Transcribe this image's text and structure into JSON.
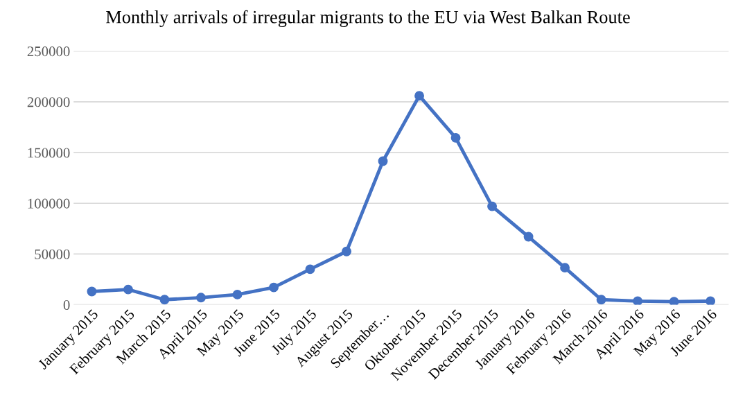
{
  "chart_data": {
    "type": "line",
    "title": "Monthly arrivals of irregular migrants to the EU via West Balkan Route",
    "categories": [
      "January 2015",
      "February 2015",
      "March 2015",
      "April 2015",
      "May 2015",
      "June 2015",
      "July 2015",
      "August 2015",
      "September…",
      "Oktober 2015",
      "November 2015",
      "December 2015",
      "January 2016",
      "February 2016",
      "March 2016",
      "April 2016",
      "May 2016",
      "June 2016"
    ],
    "series": [
      {
        "color": "#4472c4",
        "values": [
          13000,
          15000,
          5000,
          7000,
          10000,
          17000,
          35000,
          52500,
          141500,
          206000,
          164500,
          97000,
          67000,
          36500,
          5000,
          3500,
          3000,
          3500
        ]
      }
    ],
    "ylim": [
      0,
      250000
    ],
    "yticks": [
      0,
      50000,
      100000,
      150000,
      200000,
      250000
    ],
    "grid": "y",
    "marker": "circle",
    "line_style": "solid",
    "legend": false
  }
}
